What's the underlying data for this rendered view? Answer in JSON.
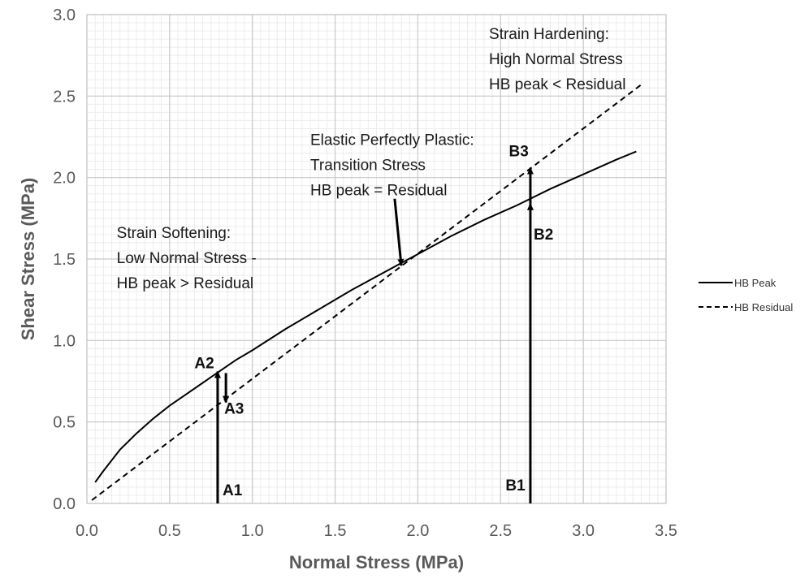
{
  "chart_data": {
    "type": "line",
    "xlabel": "Normal Stress (MPa)",
    "ylabel": "Shear Stress (MPa)",
    "xlim": [
      0,
      3.5
    ],
    "ylim": [
      0,
      3.0
    ],
    "xticks": [
      0.0,
      0.5,
      1.0,
      1.5,
      2.0,
      2.5,
      3.0,
      3.5
    ],
    "yticks": [
      0.0,
      0.5,
      1.0,
      1.5,
      2.0,
      2.5,
      3.0
    ],
    "xtick_labels": [
      "0.0",
      "0.5",
      "1.0",
      "1.5",
      "2.0",
      "2.5",
      "3.0",
      "3.5"
    ],
    "ytick_labels": [
      "0.0",
      "0.5",
      "1.0",
      "1.5",
      "2.0",
      "2.5",
      "3.0"
    ],
    "grid": true,
    "legend_position": "right",
    "series": [
      {
        "name": "HB Peak",
        "style": "solid",
        "color": "#000000",
        "x": [
          0.05,
          0.1,
          0.2,
          0.3,
          0.4,
          0.5,
          0.6,
          0.7,
          0.8,
          0.9,
          1.0,
          1.2,
          1.4,
          1.6,
          1.8,
          2.0,
          2.2,
          2.4,
          2.6,
          2.8,
          3.0,
          3.2,
          3.32
        ],
        "y": [
          0.13,
          0.2,
          0.33,
          0.43,
          0.52,
          0.6,
          0.67,
          0.74,
          0.81,
          0.88,
          0.94,
          1.07,
          1.19,
          1.31,
          1.42,
          1.53,
          1.64,
          1.74,
          1.83,
          1.93,
          2.02,
          2.11,
          2.16
        ]
      },
      {
        "name": "HB Residual",
        "style": "dashed",
        "color": "#000000",
        "x": [
          0.03,
          3.35
        ],
        "y": [
          0.02,
          2.57
        ]
      }
    ],
    "arrows": [
      {
        "label": "A1-A2",
        "from": [
          0.79,
          0.0
        ],
        "to": [
          0.79,
          0.81
        ]
      },
      {
        "label": "A2-A3",
        "from": [
          0.84,
          0.8
        ],
        "to": [
          0.84,
          0.62
        ]
      },
      {
        "label": "B1-B2",
        "from": [
          2.68,
          0.0
        ],
        "to": [
          2.68,
          1.84
        ]
      },
      {
        "label": "B2-B3",
        "from": [
          2.68,
          1.84
        ],
        "to": [
          2.68,
          2.06
        ]
      },
      {
        "label": "transition",
        "from": [
          1.86,
          1.87
        ],
        "to": [
          1.9,
          1.46
        ]
      }
    ],
    "point_labels": [
      {
        "text": "A1",
        "x": 0.82,
        "y": 0.05
      },
      {
        "text": "A2",
        "x": 0.65,
        "y": 0.83
      },
      {
        "text": "A3",
        "x": 0.83,
        "y": 0.55
      },
      {
        "text": "B1",
        "x": 2.53,
        "y": 0.08
      },
      {
        "text": "B2",
        "x": 2.7,
        "y": 1.62
      },
      {
        "text": "B3",
        "x": 2.55,
        "y": 2.13
      }
    ],
    "annotations": [
      {
        "lines": [
          "Strain Softening:",
          "Low Normal Stress -",
          "HB peak > Residual"
        ],
        "x": 0.18,
        "y": 1.63
      },
      {
        "lines": [
          "Elastic Perfectly Plastic:",
          "Transition Stress",
          "HB peak = Residual"
        ],
        "x": 1.35,
        "y": 2.2
      },
      {
        "lines": [
          "Strain Hardening:",
          "High Normal Stress",
          "HB peak < Residual"
        ],
        "x": 2.43,
        "y": 2.85
      }
    ]
  }
}
